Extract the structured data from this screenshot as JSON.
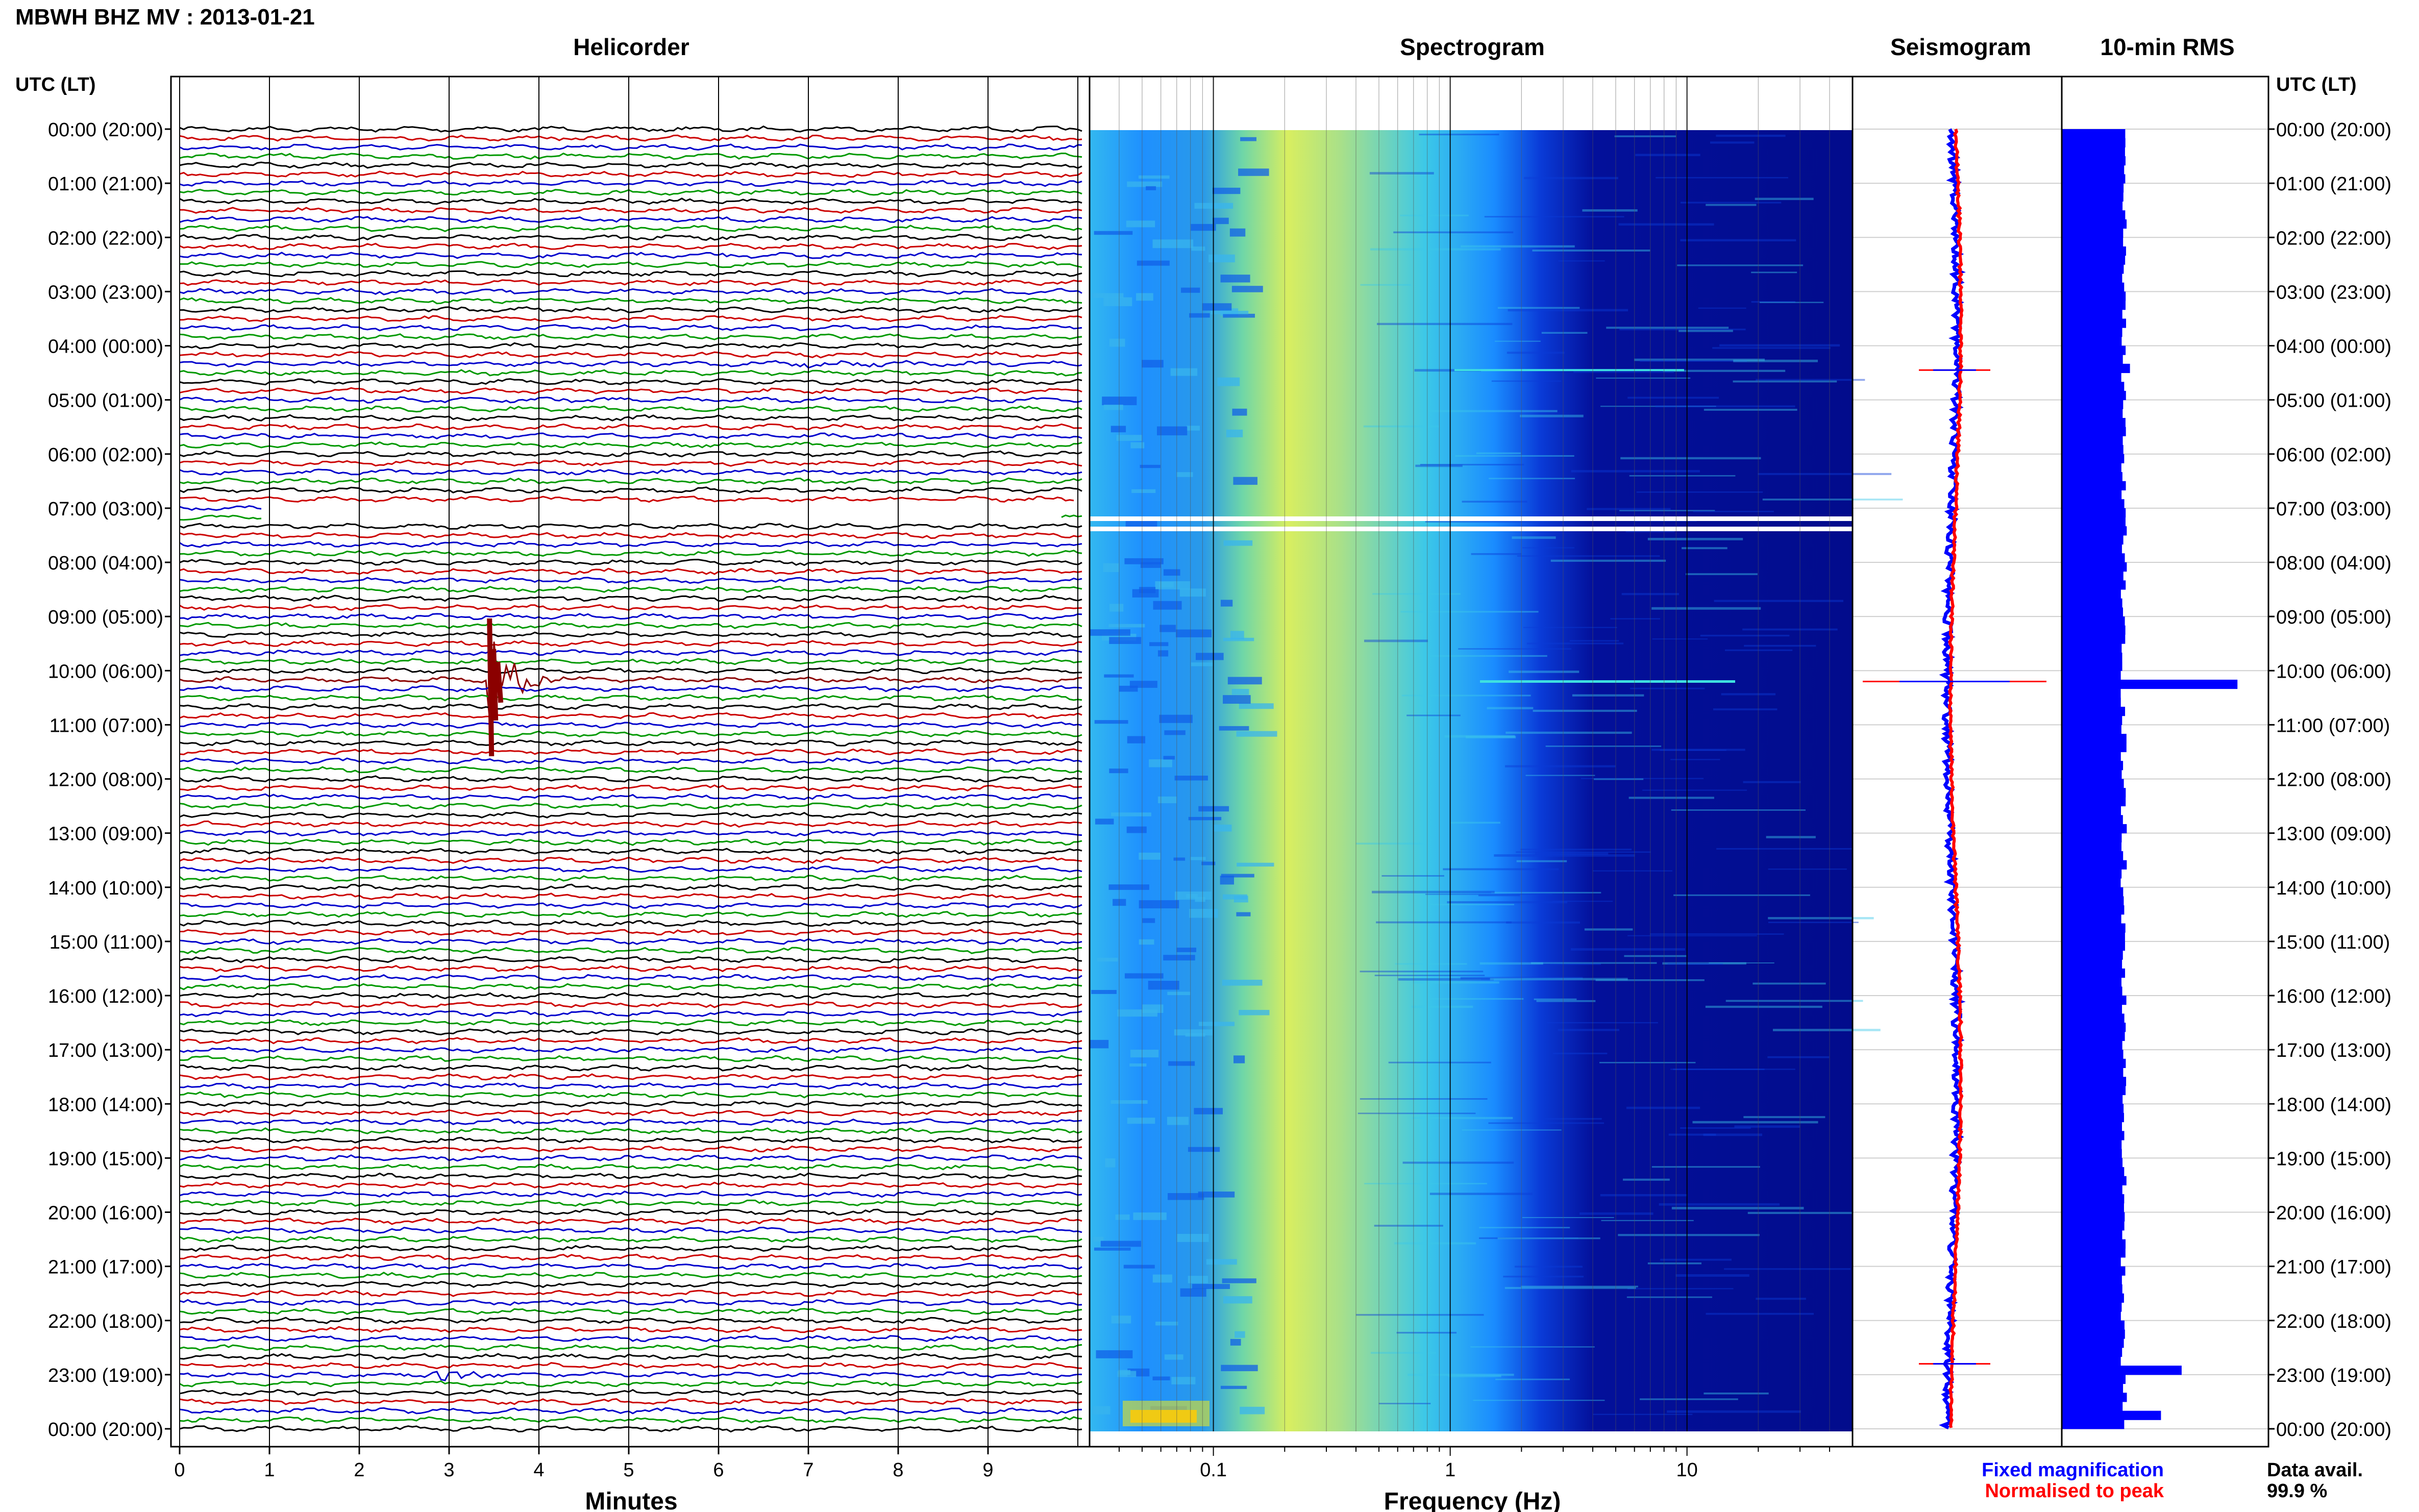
{
  "header": {
    "title": "MBWH BHZ MV : 2013-01-21"
  },
  "panels": {
    "helicorder": {
      "title": "Helicorder",
      "xlabel": "Minutes",
      "xticks": [
        "0",
        "1",
        "2",
        "3",
        "4",
        "5",
        "6",
        "7",
        "8",
        "9"
      ]
    },
    "spectrogram": {
      "title": "Spectrogram",
      "xlabel": "Frequency (Hz)",
      "xticks": [
        "0.1",
        "1",
        "10"
      ],
      "scale": "log"
    },
    "seismogram": {
      "title": "Seismogram"
    },
    "rms": {
      "title": "10-min RMS"
    }
  },
  "axis": {
    "left_header": "UTC (LT)",
    "right_header": "UTC (LT)",
    "time_labels": [
      "00:00 (20:00)",
      "01:00 (21:00)",
      "02:00 (22:00)",
      "03:00 (23:00)",
      "04:00 (00:00)",
      "05:00 (01:00)",
      "06:00 (02:00)",
      "07:00 (03:00)",
      "08:00 (04:00)",
      "09:00 (05:00)",
      "10:00 (06:00)",
      "11:00 (07:00)",
      "12:00 (08:00)",
      "13:00 (09:00)",
      "14:00 (10:00)",
      "15:00 (11:00)",
      "16:00 (12:00)",
      "17:00 (13:00)",
      "18:00 (14:00)",
      "19:00 (15:00)",
      "20:00 (16:00)",
      "21:00 (17:00)",
      "22:00 (18:00)",
      "23:00 (19:00)",
      "00:00 (20:00)"
    ]
  },
  "legend": {
    "fixed": "Fixed magnification",
    "normalised": "Normalised to peak",
    "fixed_color": "#0000ff",
    "normalised_color": "#ff0000"
  },
  "availability": {
    "label": "Data avail.",
    "value": "99.9 %"
  },
  "colors": {
    "trace_cycle": [
      "#000000",
      "#cc0000",
      "#0000cc",
      "#009900"
    ],
    "event": "#8b0000",
    "bar": "#0000ff"
  },
  "chart_data": [
    {
      "type": "line",
      "name": "helicorder",
      "x_unit": "minutes",
      "xlim": [
        0,
        10
      ],
      "rows_per_hour": 6,
      "row_count": 144,
      "events": [
        {
          "row": 61,
          "minute": 3.45,
          "amplitude": "large"
        },
        {
          "row": 138,
          "minute": 2.8,
          "amplitude": "medium"
        },
        {
          "row": 26,
          "minute": 6.6,
          "amplitude": "small"
        }
      ],
      "gaps_hours": [
        7.0,
        7.33
      ]
    },
    {
      "type": "heatmap",
      "name": "spectrogram",
      "x_unit": "Hz",
      "xlim": [
        0.03,
        50
      ],
      "xscale": "log",
      "colormap": "jet",
      "gap_rows": [
        44,
        45
      ]
    },
    {
      "type": "line",
      "name": "seismogram",
      "series": [
        "fixed",
        "normalised"
      ],
      "spikes_hours": [
        4.45,
        10.2,
        22.8
      ]
    },
    {
      "type": "bar",
      "name": "rms",
      "orientation": "horizontal",
      "bin_minutes": 10,
      "baseline_level": 0.3,
      "peaks": [
        {
          "hour": 4.4,
          "level": 0.33
        },
        {
          "hour": 10.2,
          "level": 0.85
        },
        {
          "hour": 22.8,
          "level": 0.58
        },
        {
          "hour": 23.7,
          "level": 0.48
        }
      ]
    }
  ]
}
